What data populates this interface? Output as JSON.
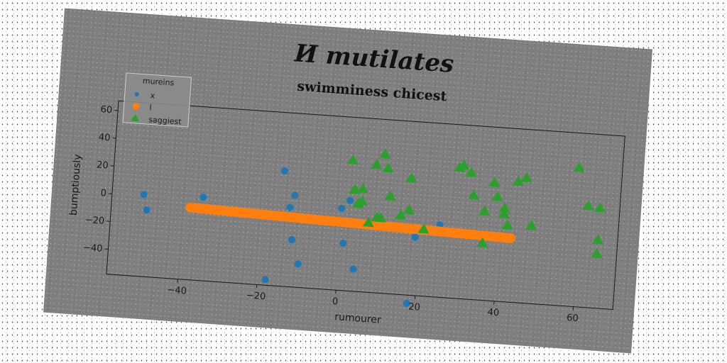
{
  "chart_data": {
    "type": "scatter",
    "suptitle": "И mutilates",
    "title": "swimminess chicest",
    "xlabel": "rumourer",
    "ylabel": "bumptiously",
    "xlim": [
      -58,
      70
    ],
    "ylim": [
      -58,
      67
    ],
    "xticks": [
      -40,
      -20,
      0,
      20,
      40,
      60
    ],
    "yticks": [
      -40,
      -20,
      0,
      20,
      40,
      60
    ],
    "grid": false,
    "legend": {
      "title": "mureins",
      "position": "top-left"
    },
    "colors": {
      "x": "#1f77b4",
      "l": "#ff7f0e",
      "saggiest": "#2ca02c"
    },
    "series": [
      {
        "name": "x",
        "marker": "circle",
        "points": [
          [
            -50,
            1
          ],
          [
            -49,
            -10
          ],
          [
            -35,
            2
          ],
          [
            -15,
            25
          ],
          [
            -12,
            8
          ],
          [
            -13,
            -1
          ],
          [
            -12,
            -24
          ],
          [
            -10,
            -41
          ],
          [
            -18,
            -54
          ],
          [
            0,
            1
          ],
          [
            2,
            7
          ],
          [
            1,
            -24
          ],
          [
            4,
            -42
          ],
          [
            19,
            -16
          ],
          [
            18,
            -64
          ],
          [
            25,
            -6
          ]
        ]
      },
      {
        "name": "l",
        "marker": "circle",
        "line": {
          "x_start": -38,
          "x_end": 43,
          "y_start": -6,
          "y_end": -12
        }
      },
      {
        "name": "saggiest",
        "marker": "triangle",
        "points": [
          [
            2,
            36
          ],
          [
            3,
            15
          ],
          [
            5,
            16
          ],
          [
            5,
            7
          ],
          [
            4,
            5
          ],
          [
            7,
            -8
          ],
          [
            9,
            -4
          ],
          [
            10,
            -4
          ],
          [
            10,
            42
          ],
          [
            8,
            34
          ],
          [
            11,
            32
          ],
          [
            12,
            12
          ],
          [
            15,
            -1
          ],
          [
            17,
            3
          ],
          [
            17,
            26
          ],
          [
            21,
            -10
          ],
          [
            29,
            36
          ],
          [
            30,
            38
          ],
          [
            32,
            33
          ],
          [
            33,
            17
          ],
          [
            36,
            6
          ],
          [
            36,
            -17
          ],
          [
            38,
            27
          ],
          [
            39,
            17
          ],
          [
            41,
            9
          ],
          [
            41,
            5
          ],
          [
            42,
            -3
          ],
          [
            44,
            29
          ],
          [
            46,
            32
          ],
          [
            48,
            -2
          ],
          [
            59,
            42
          ],
          [
            62,
            15
          ],
          [
            65,
            14
          ],
          [
            65,
            -9
          ],
          [
            65,
            -19
          ]
        ]
      }
    ]
  }
}
